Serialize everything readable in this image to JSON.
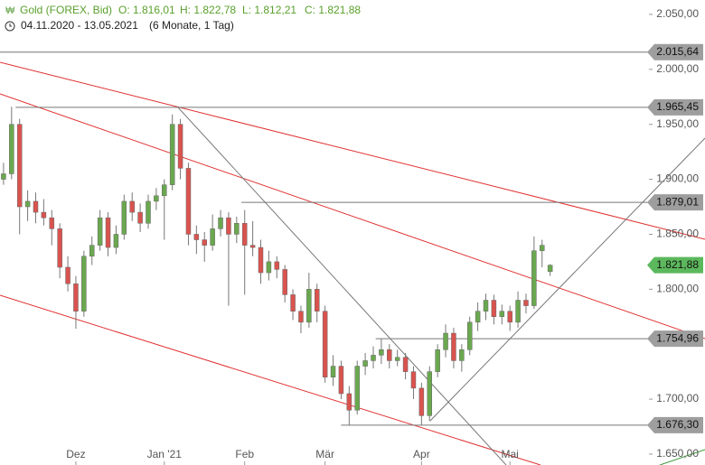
{
  "chart_data": {
    "type": "candlestick",
    "title": "Gold (FOREX, Bid)",
    "ohlc_header": [
      {
        "value": 1816.01,
        "label": "O: 1.816,01"
      },
      {
        "value": 1822.78,
        "label": "H: 1.822,78"
      },
      {
        "value": 1812.21,
        "label": "L: 1.812,21"
      },
      {
        "value": 1821.88,
        "label": "C: 1.821,88"
      }
    ],
    "period": "04.11.2020 - 13.05.2021",
    "period_note": "(6 Monate, 1 Tag)",
    "up_color": "#6aa84f",
    "down_color": "#d9534f",
    "candles": [
      [
        1900,
        1915,
        1895,
        1905
      ],
      [
        1905,
        1966,
        1900,
        1950
      ],
      [
        1950,
        1955,
        1850,
        1875
      ],
      [
        1875,
        1890,
        1862,
        1880
      ],
      [
        1880,
        1888,
        1860,
        1870
      ],
      [
        1870,
        1882,
        1858,
        1865
      ],
      [
        1865,
        1872,
        1840,
        1855
      ],
      [
        1855,
        1860,
        1810,
        1820
      ],
      [
        1820,
        1830,
        1798,
        1805
      ],
      [
        1805,
        1812,
        1764,
        1780
      ],
      [
        1780,
        1835,
        1775,
        1830
      ],
      [
        1830,
        1848,
        1822,
        1840
      ],
      [
        1840,
        1872,
        1835,
        1865
      ],
      [
        1865,
        1870,
        1830,
        1838
      ],
      [
        1838,
        1858,
        1832,
        1850
      ],
      [
        1850,
        1886,
        1845,
        1880
      ],
      [
        1880,
        1888,
        1862,
        1870
      ],
      [
        1870,
        1878,
        1852,
        1860
      ],
      [
        1860,
        1886,
        1855,
        1880
      ],
      [
        1880,
        1892,
        1872,
        1885
      ],
      [
        1885,
        1900,
        1845,
        1895
      ],
      [
        1895,
        1959,
        1890,
        1950
      ],
      [
        1950,
        1955,
        1900,
        1910
      ],
      [
        1910,
        1915,
        1840,
        1850
      ],
      [
        1850,
        1858,
        1832,
        1845
      ],
      [
        1845,
        1852,
        1825,
        1840
      ],
      [
        1840,
        1868,
        1835,
        1855
      ],
      [
        1855,
        1872,
        1848,
        1865
      ],
      [
        1865,
        1870,
        1785,
        1850
      ],
      [
        1850,
        1866,
        1842,
        1860
      ],
      [
        1860,
        1872,
        1795,
        1840
      ],
      [
        1840,
        1862,
        1830,
        1838
      ],
      [
        1838,
        1845,
        1805,
        1815
      ],
      [
        1815,
        1835,
        1808,
        1825
      ],
      [
        1825,
        1830,
        1810,
        1818
      ],
      [
        1818,
        1822,
        1788,
        1795
      ],
      [
        1795,
        1800,
        1772,
        1780
      ],
      [
        1780,
        1785,
        1760,
        1770
      ],
      [
        1770,
        1815,
        1765,
        1800
      ],
      [
        1800,
        1805,
        1770,
        1780
      ],
      [
        1780,
        1785,
        1715,
        1720
      ],
      [
        1720,
        1740,
        1712,
        1730
      ],
      [
        1730,
        1735,
        1700,
        1705
      ],
      [
        1705,
        1712,
        1676,
        1690
      ],
      [
        1690,
        1735,
        1686,
        1730
      ],
      [
        1730,
        1742,
        1722,
        1735
      ],
      [
        1735,
        1748,
        1728,
        1740
      ],
      [
        1740,
        1755,
        1732,
        1745
      ],
      [
        1745,
        1750,
        1728,
        1735
      ],
      [
        1735,
        1745,
        1730,
        1738
      ],
      [
        1738,
        1742,
        1718,
        1725
      ],
      [
        1725,
        1730,
        1700,
        1710
      ],
      [
        1710,
        1715,
        1676,
        1685
      ],
      [
        1685,
        1730,
        1680,
        1725
      ],
      [
        1725,
        1750,
        1720,
        1745
      ],
      [
        1745,
        1768,
        1738,
        1760
      ],
      [
        1760,
        1765,
        1728,
        1735
      ],
      [
        1735,
        1750,
        1725,
        1745
      ],
      [
        1745,
        1775,
        1740,
        1770
      ],
      [
        1770,
        1788,
        1762,
        1780
      ],
      [
        1780,
        1796,
        1772,
        1790
      ],
      [
        1790,
        1795,
        1768,
        1775
      ],
      [
        1775,
        1786,
        1768,
        1780
      ],
      [
        1780,
        1785,
        1762,
        1770
      ],
      [
        1770,
        1798,
        1765,
        1790
      ],
      [
        1790,
        1796,
        1778,
        1785
      ],
      [
        1785,
        1848,
        1782,
        1835
      ],
      [
        1835,
        1845,
        1820,
        1840
      ],
      [
        1816.01,
        1822.78,
        1812.21,
        1821.88
      ]
    ],
    "xlim": [
      -0.44,
      70.4
    ],
    "xticks": [
      {
        "value": 9,
        "label": "Dez"
      },
      {
        "value": 20,
        "label": "Jan '21"
      },
      {
        "value": 30,
        "label": "Feb"
      },
      {
        "value": 40,
        "label": "Mär"
      },
      {
        "value": 52,
        "label": "Apr"
      },
      {
        "value": 63,
        "label": "Mai"
      }
    ],
    "ylim": [
      1640.1,
      2063.1
    ],
    "yticks": [
      {
        "value": 2050,
        "label": "2.050,00"
      },
      {
        "value": 2000,
        "label": "2.000,00"
      },
      {
        "value": 1950,
        "label": "1.950,00"
      },
      {
        "value": 1900,
        "label": "1.900,00"
      },
      {
        "value": 1850,
        "label": "1.850,00"
      },
      {
        "value": 1800,
        "label": "1.800,00"
      },
      {
        "value": 1700,
        "label": "1.700,00"
      },
      {
        "value": 1650,
        "label": "1.650,00"
      }
    ],
    "levels": [
      {
        "value": 2015.64,
        "label": "2.015,64",
        "from": -0.44
      },
      {
        "value": 1965.45,
        "label": "1.965,45",
        "from": 1.5
      },
      {
        "value": 1879.01,
        "label": "1.879,01",
        "from": 29.6
      },
      {
        "value": 1754.96,
        "label": "1.754,96",
        "from": 46.3
      },
      {
        "value": 1676.3,
        "label": "1.676,30",
        "from": 42
      }
    ],
    "last_price": {
      "value": 1821.88,
      "label": "1.821,88",
      "color": "#5cb85c"
    }
  }
}
